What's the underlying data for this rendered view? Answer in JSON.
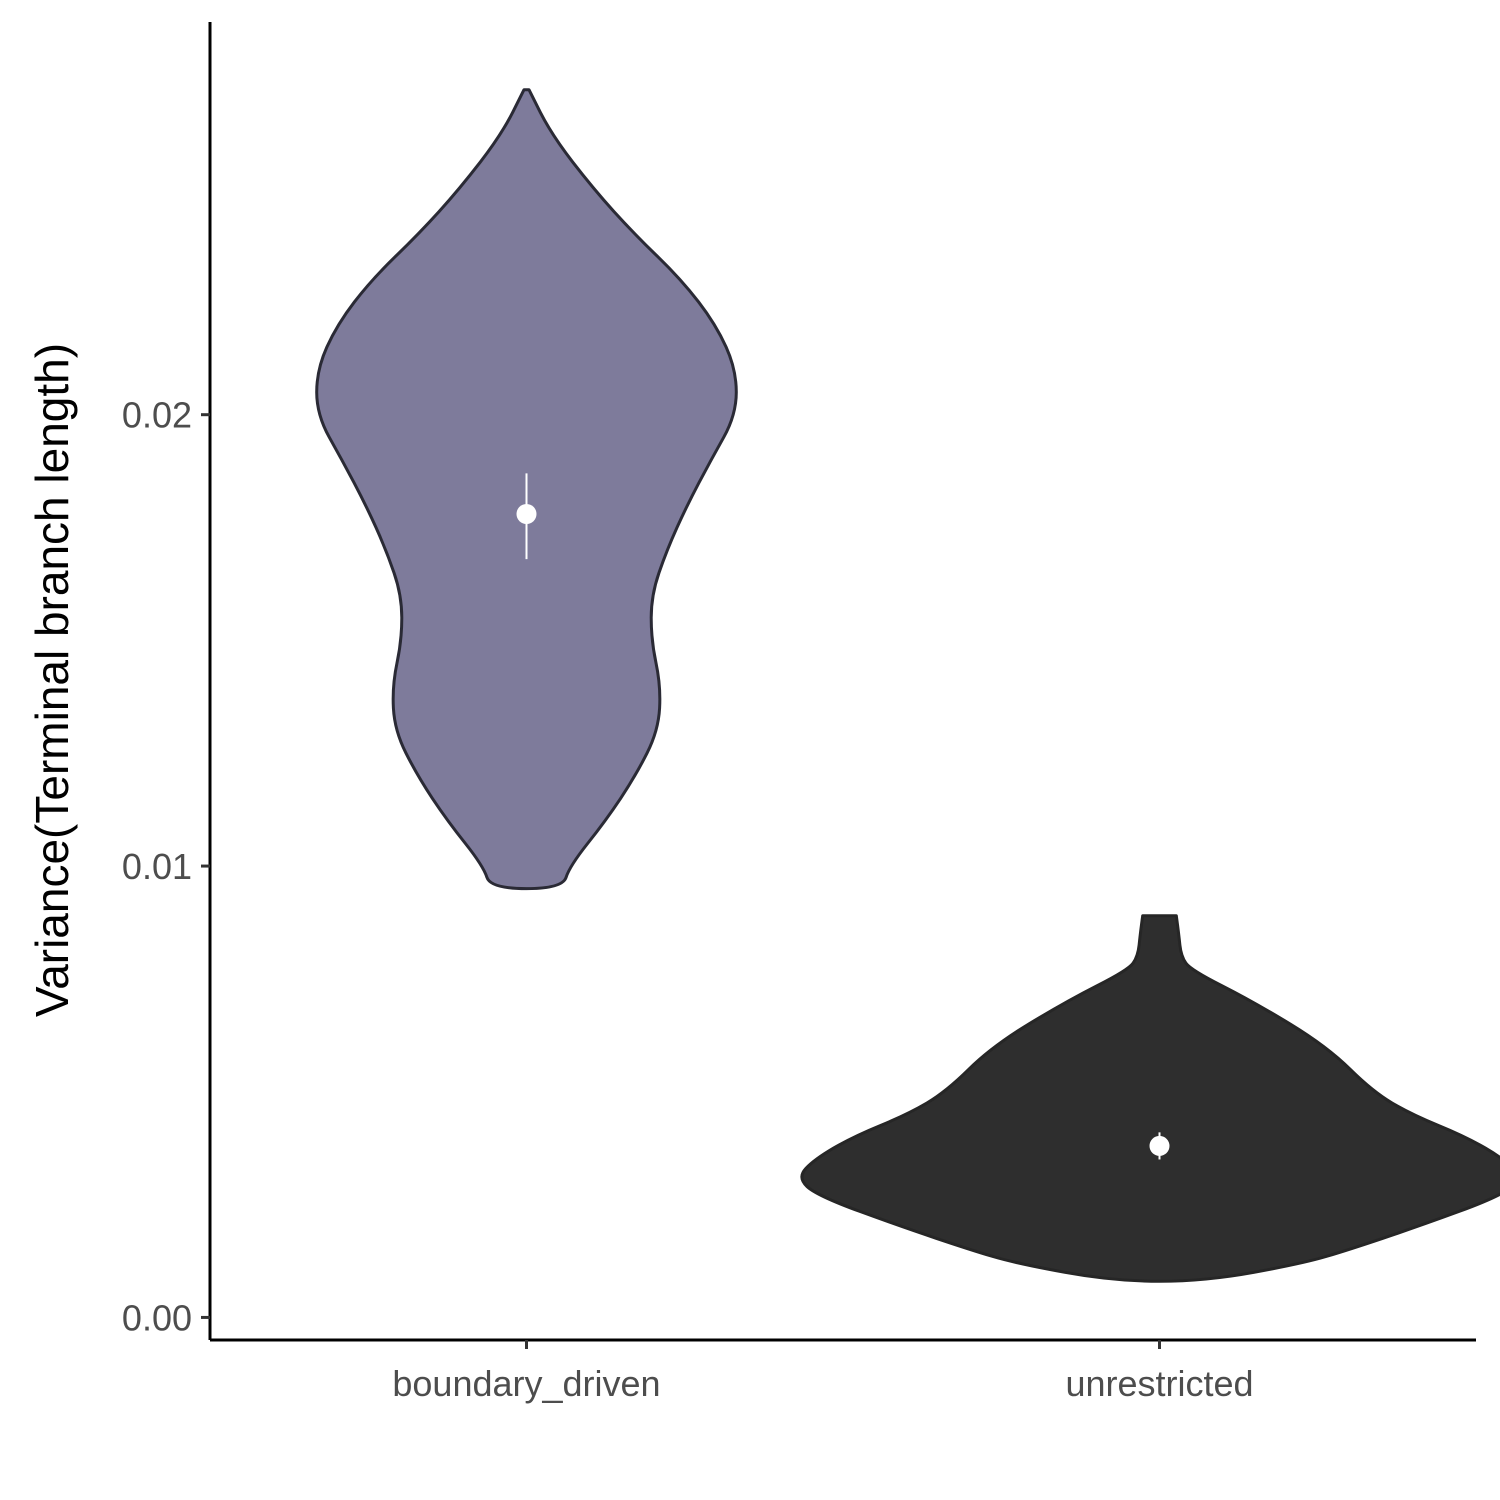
{
  "chart_data": {
    "type": "violin",
    "title": "",
    "xlabel": "",
    "ylabel": "Variance(Terminal branch length)",
    "ylim": [
      -0.0005,
      0.0287
    ],
    "yticks": [
      0.0,
      0.01,
      0.02
    ],
    "ytick_labels": [
      "0.00",
      "0.01",
      "0.02"
    ],
    "grid": false,
    "legend": "none",
    "categories": [
      "boundary_driven",
      "unrestricted"
    ],
    "series": [
      {
        "category": "boundary_driven",
        "fill_color": "#7e7b9b",
        "outline_color": "#2a2a35",
        "min": 0.0095,
        "max": 0.0272,
        "mean": 0.0178,
        "ci": [
          0.0168,
          0.0187
        ],
        "density_profile": [
          [
            0.0272,
            0.008
          ],
          [
            0.0262,
            0.0795
          ],
          [
            0.025,
            0.2121
          ],
          [
            0.024,
            0.3409
          ],
          [
            0.023,
            0.4886
          ],
          [
            0.022,
            0.5985
          ],
          [
            0.021,
            0.6629
          ],
          [
            0.02,
            0.6629
          ],
          [
            0.019,
            0.5833
          ],
          [
            0.018,
            0.5076
          ],
          [
            0.017,
            0.4432
          ],
          [
            0.016,
            0.3939
          ],
          [
            0.015,
            0.3939
          ],
          [
            0.014,
            0.4242
          ],
          [
            0.013,
            0.4167
          ],
          [
            0.012,
            0.3447
          ],
          [
            0.011,
            0.25
          ],
          [
            0.01,
            0.1364
          ],
          [
            0.0095,
            0.1136
          ]
        ]
      },
      {
        "category": "unrestricted",
        "fill_color": "#2e2e2e",
        "outline_color": "#262626",
        "min": 0.0008,
        "max": 0.0089,
        "mean": 0.0038,
        "ci": [
          0.0035,
          0.0041
        ],
        "density_profile": [
          [
            0.0089,
            0.053
          ],
          [
            0.0085,
            0.0606
          ],
          [
            0.008,
            0.0682
          ],
          [
            0.0077,
            0.0985
          ],
          [
            0.007,
            0.2955
          ],
          [
            0.006,
            0.5303
          ],
          [
            0.005,
            0.6742
          ],
          [
            0.0045,
            0.7955
          ],
          [
            0.004,
            0.9697
          ],
          [
            0.0035,
            1.0909
          ],
          [
            0.0031,
            1.1439
          ],
          [
            0.0027,
            1.0833
          ],
          [
            0.002,
            0.8106
          ],
          [
            0.0015,
            0.5985
          ],
          [
            0.0012,
            0.4545
          ],
          [
            0.0008,
            0.1439
          ]
        ]
      }
    ]
  }
}
